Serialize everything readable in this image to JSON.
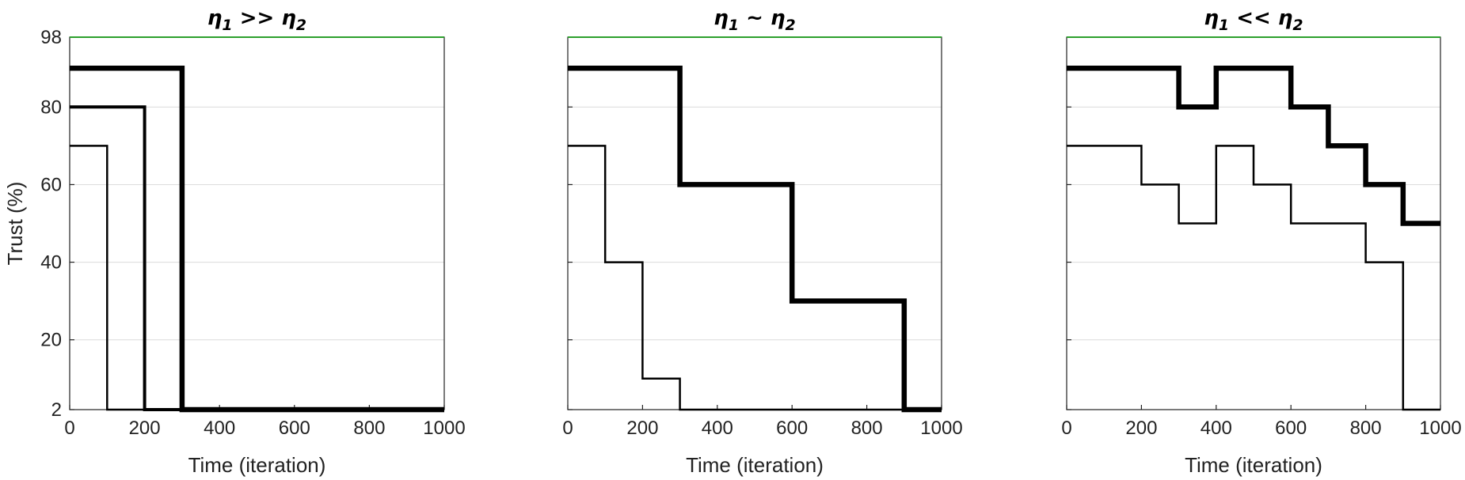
{
  "chart_data": [
    {
      "type": "line",
      "title": {
        "eta1": "η",
        "sub1": "1",
        "op": " >> ",
        "eta2": "η",
        "sub2": "2"
      },
      "xlabel": "Time (iteration)",
      "ylabel": "Trust (%)",
      "xlim": [
        0,
        1000
      ],
      "ylim": [
        2,
        98
      ],
      "xticks": [
        "0",
        "200",
        "400",
        "600",
        "800",
        "1000"
      ],
      "yticks": [
        "2",
        "20",
        "40",
        "60",
        "80",
        "98"
      ],
      "ytick_values": [
        2,
        20,
        40,
        60,
        80,
        98
      ],
      "grid": "horizontal",
      "reference_line": {
        "y": 98,
        "color": "#2ca02c"
      },
      "series": [
        {
          "width": "thin",
          "x": [
            0,
            100,
            100,
            1000
          ],
          "y": [
            70,
            70,
            2,
            2
          ]
        },
        {
          "width": "medium",
          "x": [
            0,
            200,
            200,
            1000
          ],
          "y": [
            80,
            80,
            2,
            2
          ]
        },
        {
          "width": "thick",
          "x": [
            0,
            300,
            300,
            1000
          ],
          "y": [
            90,
            90,
            2,
            2
          ]
        }
      ]
    },
    {
      "type": "line",
      "title": {
        "eta1": "η",
        "sub1": "1",
        "op": " ~ ",
        "eta2": "η",
        "sub2": "2"
      },
      "xlabel": "Time (iteration)",
      "ylabel": "",
      "xlim": [
        0,
        1000
      ],
      "ylim": [
        2,
        98
      ],
      "xticks": [
        "0",
        "200",
        "400",
        "600",
        "800",
        "1000"
      ],
      "yticks": [],
      "ytick_values": [
        2,
        20,
        40,
        60,
        80,
        98
      ],
      "grid": "horizontal",
      "reference_line": {
        "y": 98,
        "color": "#2ca02c"
      },
      "series": [
        {
          "width": "thin",
          "x": [
            0,
            100,
            100,
            200,
            200,
            300,
            300,
            1000
          ],
          "y": [
            70,
            70,
            40,
            40,
            10,
            10,
            2,
            2
          ]
        },
        {
          "width": "thick",
          "x": [
            0,
            300,
            300,
            600,
            600,
            900,
            900,
            1000
          ],
          "y": [
            90,
            90,
            60,
            60,
            30,
            30,
            2,
            2
          ]
        }
      ]
    },
    {
      "type": "line",
      "title": {
        "eta1": "η",
        "sub1": "1",
        "op": " << ",
        "eta2": "η",
        "sub2": "2"
      },
      "xlabel": "Time (iteration)",
      "ylabel": "",
      "xlim": [
        0,
        1000
      ],
      "ylim": [
        2,
        98
      ],
      "xticks": [
        "0",
        "200",
        "400",
        "600",
        "800",
        "1000"
      ],
      "yticks": [],
      "ytick_values": [
        2,
        20,
        40,
        60,
        80,
        98
      ],
      "grid": "horizontal",
      "reference_line": {
        "y": 98,
        "color": "#2ca02c"
      },
      "series": [
        {
          "width": "thin",
          "x": [
            0,
            200,
            200,
            300,
            300,
            400,
            400,
            500,
            500,
            600,
            600,
            800,
            800,
            900,
            900,
            1000
          ],
          "y": [
            70,
            70,
            60,
            60,
            50,
            50,
            70,
            70,
            60,
            60,
            50,
            50,
            40,
            40,
            2,
            2
          ]
        },
        {
          "width": "thick",
          "x": [
            0,
            300,
            300,
            400,
            400,
            600,
            600,
            700,
            700,
            800,
            800,
            900,
            900,
            1000
          ],
          "y": [
            90,
            90,
            80,
            80,
            90,
            90,
            80,
            80,
            70,
            70,
            60,
            60,
            50,
            50
          ]
        }
      ]
    }
  ]
}
